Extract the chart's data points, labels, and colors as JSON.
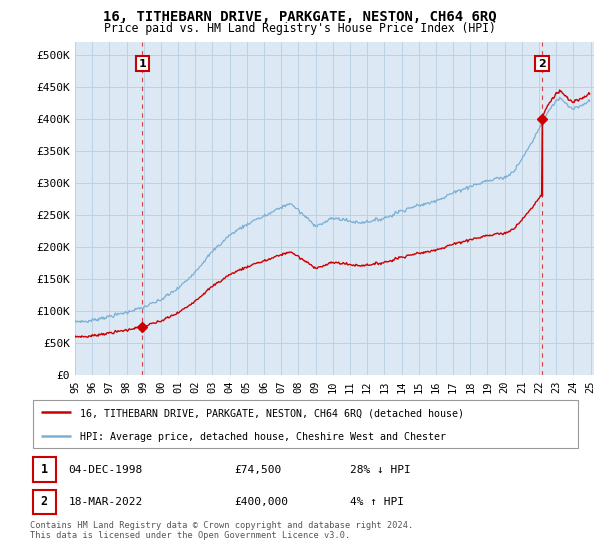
{
  "title": "16, TITHEBARN DRIVE, PARKGATE, NESTON, CH64 6RQ",
  "subtitle": "Price paid vs. HM Land Registry's House Price Index (HPI)",
  "ylabel_ticks": [
    "£0",
    "£50K",
    "£100K",
    "£150K",
    "£200K",
    "£250K",
    "£300K",
    "£350K",
    "£400K",
    "£450K",
    "£500K"
  ],
  "ytick_vals": [
    0,
    50000,
    100000,
    150000,
    200000,
    250000,
    300000,
    350000,
    400000,
    450000,
    500000
  ],
  "ylim": [
    0,
    520000
  ],
  "hpi_color": "#7bafd4",
  "price_color": "#cc0000",
  "plot_bg_color": "#dce9f5",
  "grid_color": "#b8cfe0",
  "background_color": "#ffffff",
  "sale1_year": 1998.917,
  "sale1_price": 74500,
  "sale2_year": 2022.167,
  "sale2_price": 400000,
  "legend_line1": "16, TITHEBARN DRIVE, PARKGATE, NESTON, CH64 6RQ (detached house)",
  "legend_line2": "HPI: Average price, detached house, Cheshire West and Chester",
  "marker1_date": "04-DEC-1998",
  "marker1_price": "£74,500",
  "marker1_pct": "28% ↓ HPI",
  "marker2_date": "18-MAR-2022",
  "marker2_price": "£400,000",
  "marker2_pct": "4% ↑ HPI",
  "footnote": "Contains HM Land Registry data © Crown copyright and database right 2024.\nThis data is licensed under the Open Government Licence v3.0."
}
